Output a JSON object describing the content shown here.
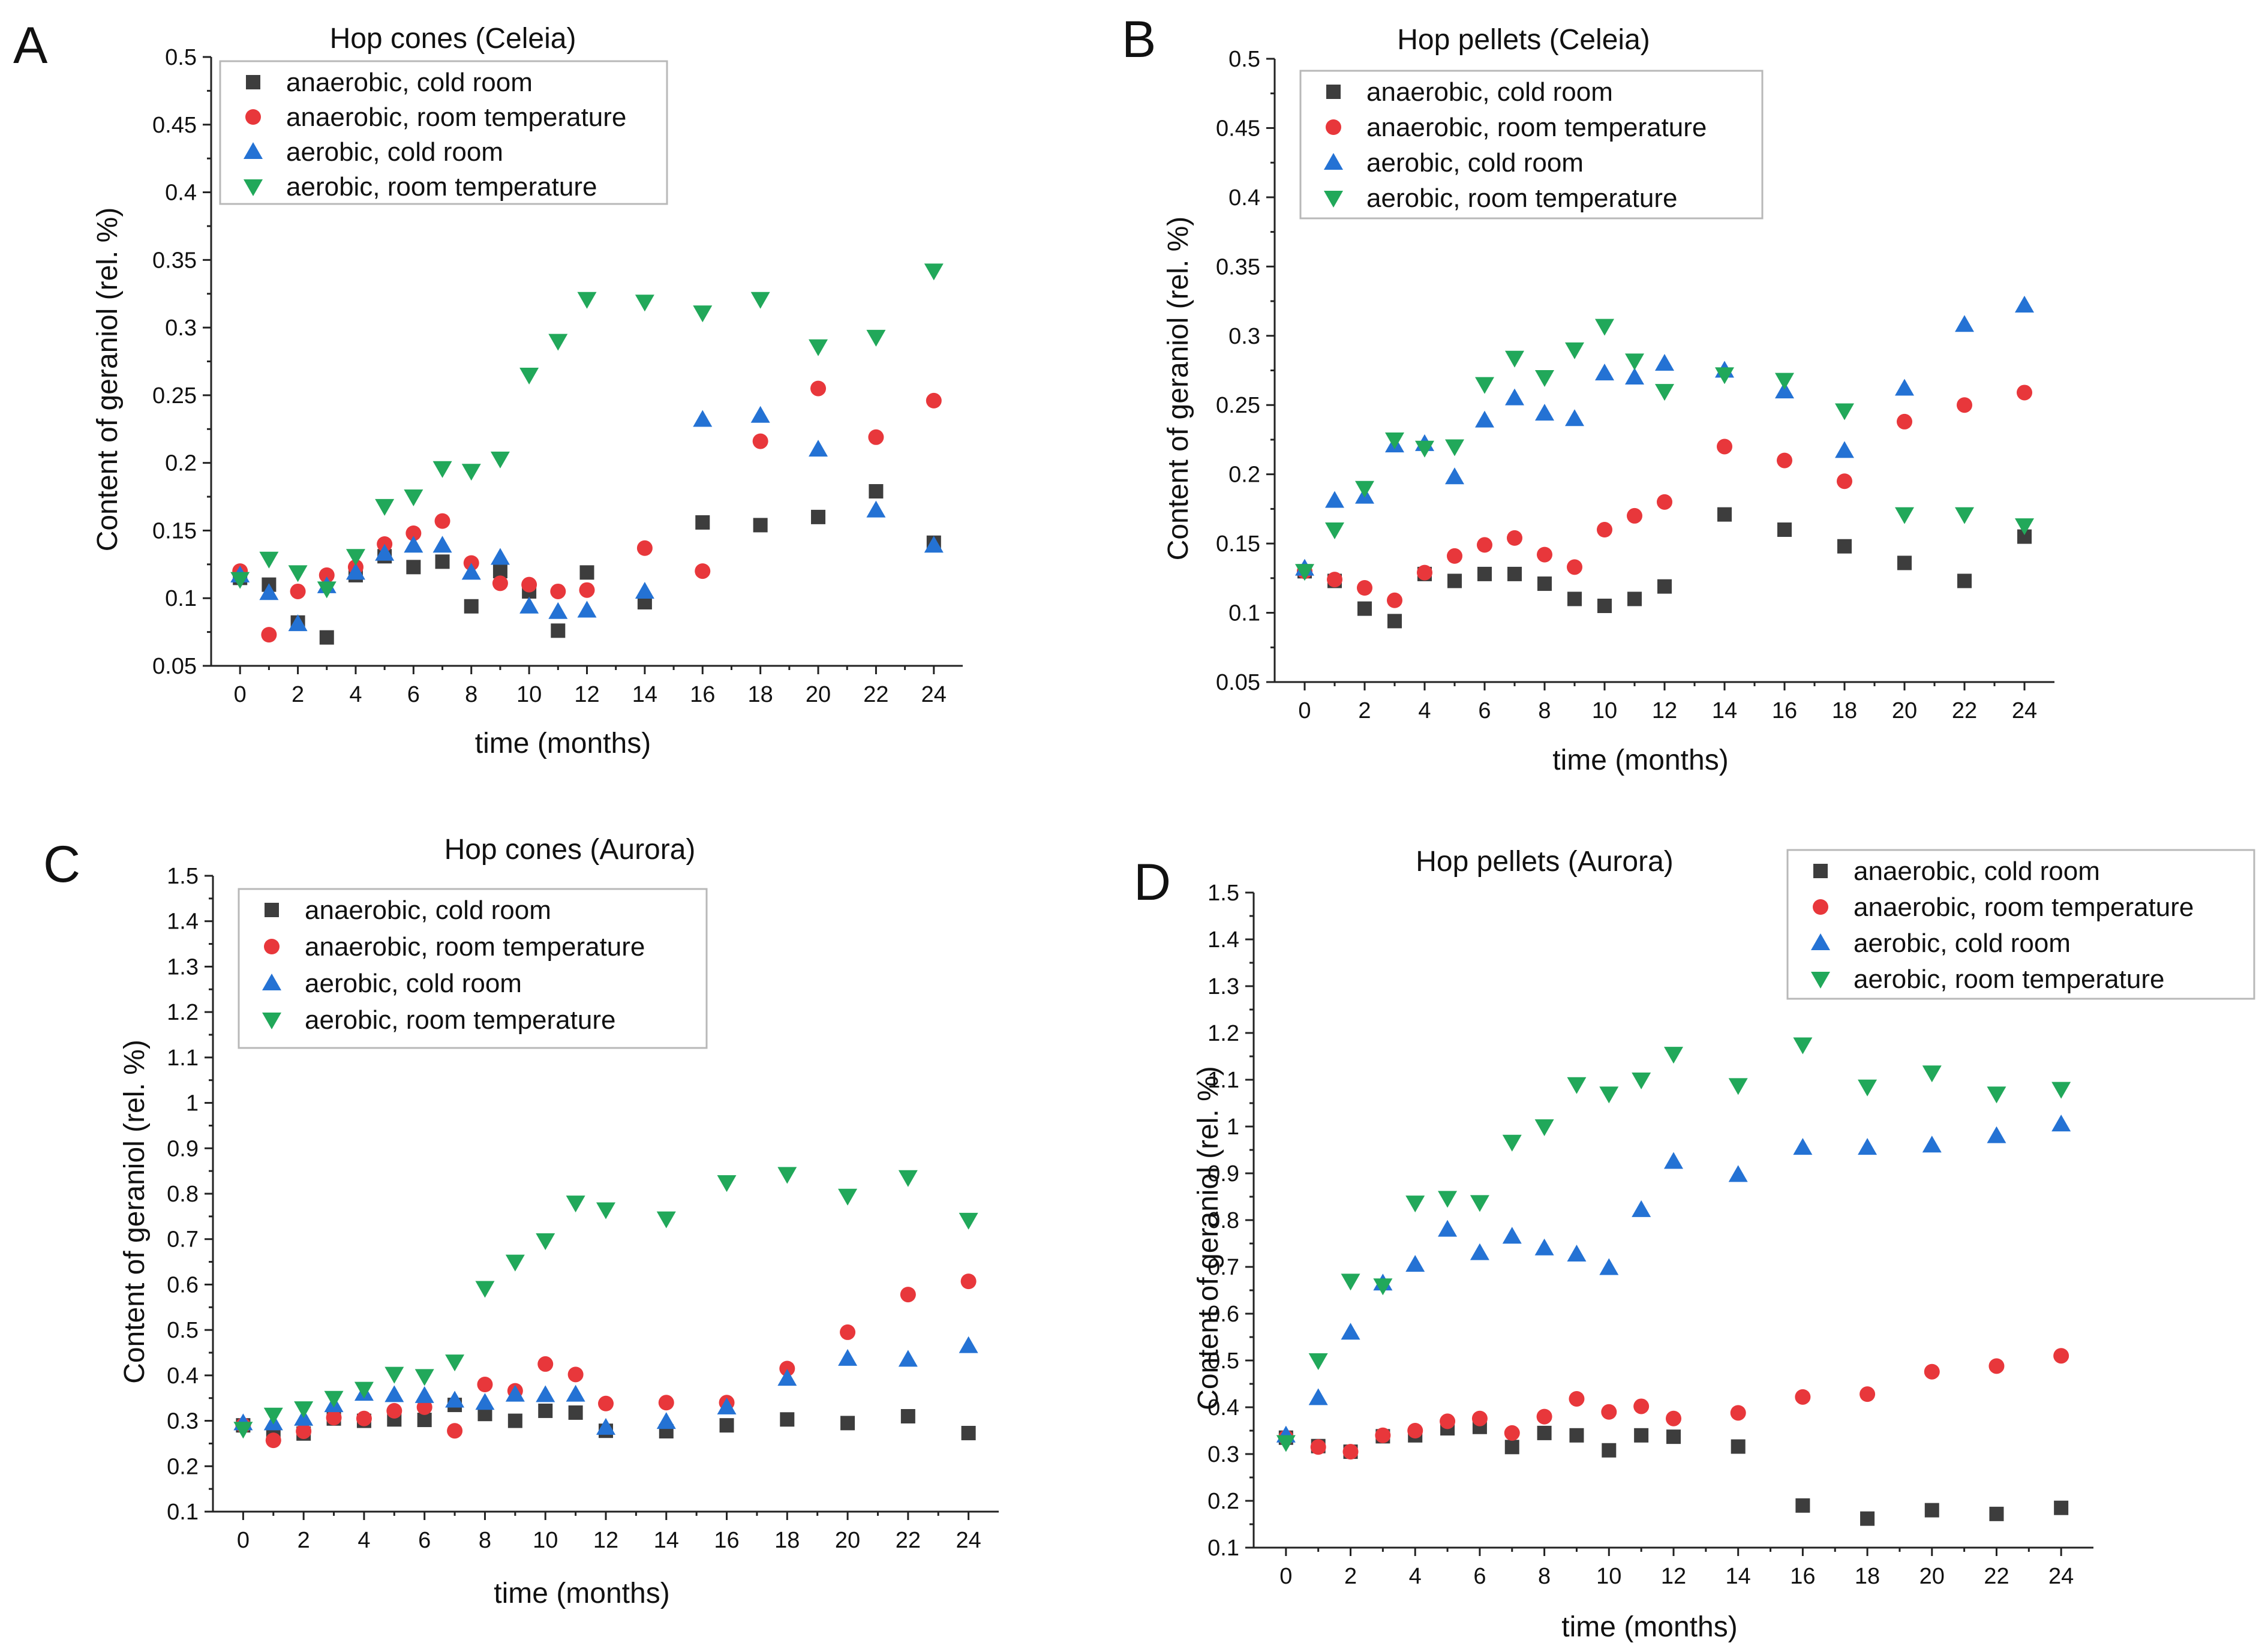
{
  "figure": {
    "styles": [
      {
        "key": "s0",
        "marker": "square",
        "color": "#3d3d3d"
      },
      {
        "key": "s1",
        "marker": "circle",
        "color": "#e8373b"
      },
      {
        "key": "s2",
        "marker": "triangle-up",
        "color": "#2472d4"
      },
      {
        "key": "s3",
        "marker": "triangle-down",
        "color": "#21a85a"
      }
    ]
  },
  "chart_data": [
    {
      "letter": "A",
      "type": "scatter",
      "title": "Hop cones (Celeia)",
      "xlabel": "time (months)",
      "ylabel": "Content of geraniol (rel. %)",
      "xlim": [
        -1,
        25
      ],
      "ylim": [
        0.05,
        0.5
      ],
      "xticks": [
        0,
        2,
        4,
        6,
        8,
        10,
        12,
        14,
        16,
        18,
        20,
        22,
        24
      ],
      "yticks": [
        0.05,
        0.1,
        0.15,
        0.2,
        0.25,
        0.3,
        0.35,
        0.4,
        0.45,
        0.5
      ],
      "legend_position": "top-left",
      "series": [
        {
          "name": "anaerobic, cold room",
          "x": [
            0,
            1,
            2,
            3,
            4,
            5,
            6,
            7,
            8,
            9,
            10,
            11,
            12,
            14,
            16,
            18,
            20,
            22,
            24
          ],
          "y": [
            0.115,
            0.11,
            0.082,
            0.071,
            0.117,
            0.131,
            0.123,
            0.127,
            0.094,
            0.12,
            0.105,
            0.076,
            0.119,
            0.097,
            0.156,
            0.154,
            0.16,
            0.179,
            0.141
          ]
        },
        {
          "name": "anaerobic, room temperature",
          "x": [
            0,
            1,
            2,
            3,
            4,
            5,
            6,
            7,
            8,
            9,
            10,
            11,
            12,
            14,
            16,
            18,
            20,
            22,
            24
          ],
          "y": [
            0.12,
            0.073,
            0.105,
            0.117,
            0.123,
            0.14,
            0.148,
            0.157,
            0.126,
            0.111,
            0.11,
            0.105,
            0.106,
            0.137,
            0.12,
            0.216,
            0.255,
            0.219,
            0.246
          ]
        },
        {
          "name": "aerobic, cold room",
          "x": [
            0,
            1,
            2,
            3,
            4,
            5,
            6,
            7,
            8,
            9,
            10,
            11,
            12,
            14,
            16,
            18,
            20,
            22,
            24
          ],
          "y": [
            0.117,
            0.104,
            0.081,
            0.109,
            0.119,
            0.133,
            0.139,
            0.139,
            0.119,
            0.13,
            0.094,
            0.09,
            0.091,
            0.105,
            0.232,
            0.235,
            0.21,
            0.165,
            0.139
          ]
        },
        {
          "name": "aerobic, room temperature",
          "x": [
            0,
            1,
            2,
            3,
            4,
            5,
            6,
            7,
            8,
            9,
            10,
            11,
            12,
            14,
            16,
            18,
            20,
            22,
            24
          ],
          "y": [
            0.114,
            0.129,
            0.119,
            0.107,
            0.131,
            0.168,
            0.175,
            0.196,
            0.194,
            0.203,
            0.265,
            0.29,
            0.321,
            0.319,
            0.311,
            0.321,
            0.286,
            0.293,
            0.342
          ]
        }
      ]
    },
    {
      "letter": "B",
      "type": "scatter",
      "title": "Hop pellets (Celeia)",
      "xlabel": "time (months)",
      "ylabel": "Content of geraniol (rel. %)",
      "xlim": [
        -1,
        25
      ],
      "ylim": [
        0.05,
        0.5
      ],
      "xticks": [
        0,
        2,
        4,
        6,
        8,
        10,
        12,
        14,
        16,
        18,
        20,
        22,
        24
      ],
      "yticks": [
        0.05,
        0.1,
        0.15,
        0.2,
        0.25,
        0.3,
        0.35,
        0.4,
        0.45,
        0.5
      ],
      "legend_position": "top-left",
      "series": [
        {
          "name": "anaerobic, cold room",
          "x": [
            0,
            1,
            2,
            3,
            4,
            5,
            6,
            7,
            8,
            9,
            10,
            11,
            12,
            14,
            16,
            18,
            20,
            22,
            24
          ],
          "y": [
            0.13,
            0.123,
            0.103,
            0.094,
            0.128,
            0.123,
            0.128,
            0.128,
            0.121,
            0.11,
            0.105,
            0.11,
            0.119,
            0.171,
            0.16,
            0.148,
            0.136,
            0.123,
            0.155
          ]
        },
        {
          "name": "anaerobic, room temperature",
          "x": [
            0,
            1,
            2,
            3,
            4,
            5,
            6,
            7,
            8,
            9,
            10,
            11,
            12,
            14,
            16,
            18,
            20,
            22,
            24
          ],
          "y": [
            0.13,
            0.124,
            0.118,
            0.109,
            0.129,
            0.141,
            0.149,
            0.154,
            0.142,
            0.133,
            0.16,
            0.17,
            0.18,
            0.22,
            0.21,
            0.195,
            0.238,
            0.25,
            0.259
          ]
        },
        {
          "name": "aerobic, cold room",
          "x": [
            0,
            1,
            2,
            3,
            4,
            5,
            6,
            7,
            8,
            9,
            10,
            11,
            12,
            14,
            16,
            18,
            20,
            22,
            24
          ],
          "y": [
            0.132,
            0.181,
            0.184,
            0.221,
            0.222,
            0.198,
            0.239,
            0.255,
            0.244,
            0.24,
            0.273,
            0.27,
            0.28,
            0.275,
            0.26,
            0.217,
            0.262,
            0.308,
            0.322
          ]
        },
        {
          "name": "aerobic, room temperature",
          "x": [
            0,
            1,
            2,
            3,
            4,
            5,
            6,
            7,
            8,
            9,
            10,
            11,
            12,
            14,
            16,
            18,
            20,
            22,
            24
          ],
          "y": [
            0.13,
            0.16,
            0.19,
            0.225,
            0.219,
            0.22,
            0.265,
            0.284,
            0.27,
            0.29,
            0.307,
            0.282,
            0.26,
            0.272,
            0.268,
            0.246,
            0.171,
            0.171,
            0.163
          ]
        }
      ]
    },
    {
      "letter": "C",
      "type": "scatter",
      "title": "Hop cones (Aurora)",
      "xlabel": "time (months)",
      "ylabel": "Content of geraniol (rel. %)",
      "xlim": [
        -1,
        25
      ],
      "ylim": [
        0.1,
        1.5
      ],
      "xticks": [
        0,
        2,
        4,
        6,
        8,
        10,
        12,
        14,
        16,
        18,
        20,
        22,
        24
      ],
      "yticks": [
        0.1,
        0.2,
        0.3,
        0.4,
        0.5,
        0.6,
        0.7,
        0.8,
        0.9,
        1,
        1.1,
        1.2,
        1.3,
        1.4,
        1.5
      ],
      "legend_position": "top-left",
      "series": [
        {
          "name": "anaerobic, cold room",
          "x": [
            0,
            1,
            2,
            3,
            4,
            5,
            6,
            7,
            8,
            9,
            10,
            11,
            12,
            14,
            16,
            18,
            20,
            22,
            24
          ],
          "y": [
            0.29,
            0.267,
            0.272,
            0.305,
            0.3,
            0.303,
            0.302,
            0.335,
            0.315,
            0.3,
            0.322,
            0.318,
            0.278,
            0.277,
            0.29,
            0.303,
            0.295,
            0.31,
            0.273
          ]
        },
        {
          "name": "anaerobic, room temperature",
          "x": [
            0,
            1,
            2,
            3,
            4,
            5,
            6,
            7,
            8,
            9,
            10,
            11,
            12,
            14,
            16,
            18,
            20,
            22,
            24
          ],
          "y": [
            0.29,
            0.257,
            0.277,
            0.307,
            0.305,
            0.322,
            0.33,
            0.278,
            0.38,
            0.366,
            0.425,
            0.402,
            0.338,
            0.34,
            0.34,
            0.415,
            0.495,
            0.578,
            0.607
          ]
        },
        {
          "name": "aerobic, cold room",
          "x": [
            0,
            1,
            2,
            3,
            4,
            5,
            6,
            7,
            8,
            9,
            10,
            11,
            12,
            14,
            16,
            18,
            20,
            22,
            24
          ],
          "y": [
            0.295,
            0.295,
            0.305,
            0.335,
            0.36,
            0.357,
            0.355,
            0.345,
            0.34,
            0.358,
            0.357,
            0.358,
            0.285,
            0.298,
            0.33,
            0.393,
            0.437,
            0.435,
            0.465
          ]
        },
        {
          "name": "aerobic, room temperature",
          "x": [
            0,
            1,
            2,
            3,
            4,
            5,
            6,
            7,
            8,
            9,
            10,
            11,
            12,
            14,
            16,
            18,
            20,
            22,
            24
          ],
          "y": [
            0.282,
            0.313,
            0.327,
            0.35,
            0.37,
            0.403,
            0.398,
            0.43,
            0.592,
            0.65,
            0.697,
            0.78,
            0.765,
            0.745,
            0.825,
            0.843,
            0.795,
            0.836,
            0.742
          ]
        }
      ]
    },
    {
      "letter": "D",
      "type": "scatter",
      "title": "Hop pellets (Aurora)",
      "xlabel": "time (months)",
      "ylabel": "Content of geraniol (rel. %)",
      "xlim": [
        -1,
        25
      ],
      "ylim": [
        0.1,
        1.5
      ],
      "xticks": [
        0,
        2,
        4,
        6,
        8,
        10,
        12,
        14,
        16,
        18,
        20,
        22,
        24
      ],
      "yticks": [
        0.1,
        0.2,
        0.3,
        0.4,
        0.5,
        0.6,
        0.7,
        0.8,
        0.9,
        1,
        1.1,
        1.2,
        1.3,
        1.4,
        1.5
      ],
      "legend_position": "top-right",
      "series": [
        {
          "name": "anaerobic, cold room",
          "x": [
            0,
            1,
            2,
            3,
            4,
            5,
            6,
            7,
            8,
            9,
            10,
            11,
            12,
            14,
            16,
            18,
            20,
            22,
            24
          ],
          "y": [
            0.335,
            0.317,
            0.305,
            0.338,
            0.34,
            0.355,
            0.358,
            0.315,
            0.345,
            0.34,
            0.308,
            0.34,
            0.337,
            0.316,
            0.19,
            0.162,
            0.18,
            0.172,
            0.185
          ]
        },
        {
          "name": "anaerobic, room temperature",
          "x": [
            0,
            1,
            2,
            3,
            4,
            5,
            6,
            7,
            8,
            9,
            10,
            11,
            12,
            14,
            16,
            18,
            20,
            22,
            24
          ],
          "y": [
            0.335,
            0.315,
            0.305,
            0.34,
            0.35,
            0.37,
            0.376,
            0.345,
            0.38,
            0.418,
            0.39,
            0.402,
            0.376,
            0.388,
            0.422,
            0.428,
            0.476,
            0.488,
            0.51
          ]
        },
        {
          "name": "aerobic, cold room",
          "x": [
            0,
            1,
            2,
            3,
            4,
            5,
            6,
            7,
            8,
            9,
            10,
            11,
            12,
            14,
            16,
            18,
            20,
            22,
            24
          ],
          "y": [
            0.34,
            0.42,
            0.56,
            0.665,
            0.705,
            0.78,
            0.73,
            0.765,
            0.74,
            0.727,
            0.698,
            0.822,
            0.925,
            0.897,
            0.955,
            0.955,
            0.96,
            0.98,
            1.005
          ]
        },
        {
          "name": "aerobic, room temperature",
          "x": [
            0,
            1,
            2,
            3,
            4,
            5,
            6,
            7,
            8,
            9,
            10,
            11,
            12,
            14,
            16,
            18,
            20,
            22,
            24
          ],
          "y": [
            0.325,
            0.5,
            0.67,
            0.66,
            0.837,
            0.847,
            0.838,
            0.967,
            1.0,
            1.09,
            1.07,
            1.1,
            1.155,
            1.088,
            1.175,
            1.085,
            1.115,
            1.07,
            1.08
          ]
        }
      ]
    }
  ]
}
